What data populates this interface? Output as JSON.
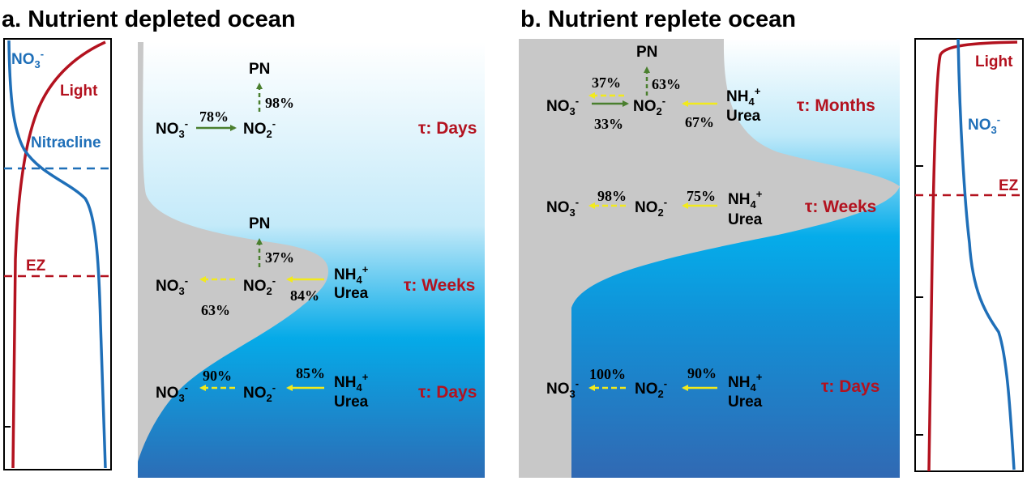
{
  "species": {
    "no3": {
      "base": "NO",
      "sub": "3",
      "sup": "-"
    },
    "no2": {
      "base": "NO",
      "sub": "2",
      "sup": "-"
    },
    "nh4": {
      "base": "NH",
      "sub": "4",
      "sup": "+"
    },
    "pn": "PN",
    "urea": "Urea"
  },
  "colors": {
    "tau": "#b3121f",
    "nitrate_profile": "#1f6fb8",
    "light_profile": "#b3121f",
    "assimilation_arrow": "#4a7f2e",
    "oxidation_arrow": "#f2ea1c",
    "gray_zone": "#c8c8c8"
  },
  "panel_a": {
    "title": "a. Nutrient depleted ocean",
    "profile": {
      "light": "Light",
      "nitracline": "Nitracline",
      "ez": "EZ"
    },
    "rows": [
      {
        "tau": "τ: Days",
        "no3_to_no2": "78%",
        "no2_to_pn": "98%"
      },
      {
        "tau": "τ: Weeks",
        "no2_to_pn": "37%",
        "no2_to_no3": "63%",
        "nh4_to_no2": "84%"
      },
      {
        "tau": "τ: Days",
        "no2_to_no3": "90%",
        "nh4_to_no2": "85%"
      }
    ]
  },
  "panel_b": {
    "title": "b. Nutrient replete ocean",
    "profile": {
      "light": "Light",
      "ez": "EZ"
    },
    "rows": [
      {
        "tau": "τ: Months",
        "no2_to_pn": "63%",
        "no2_to_no3": "37%",
        "no3_to_no2": "33%",
        "nh4_to_no2": "67%"
      },
      {
        "tau": "τ: Weeks",
        "no2_to_no3": "98%",
        "nh4_to_no2": "75%"
      },
      {
        "tau": "τ: Days",
        "no2_to_no3": "100%",
        "nh4_to_no2": "90%"
      }
    ]
  }
}
